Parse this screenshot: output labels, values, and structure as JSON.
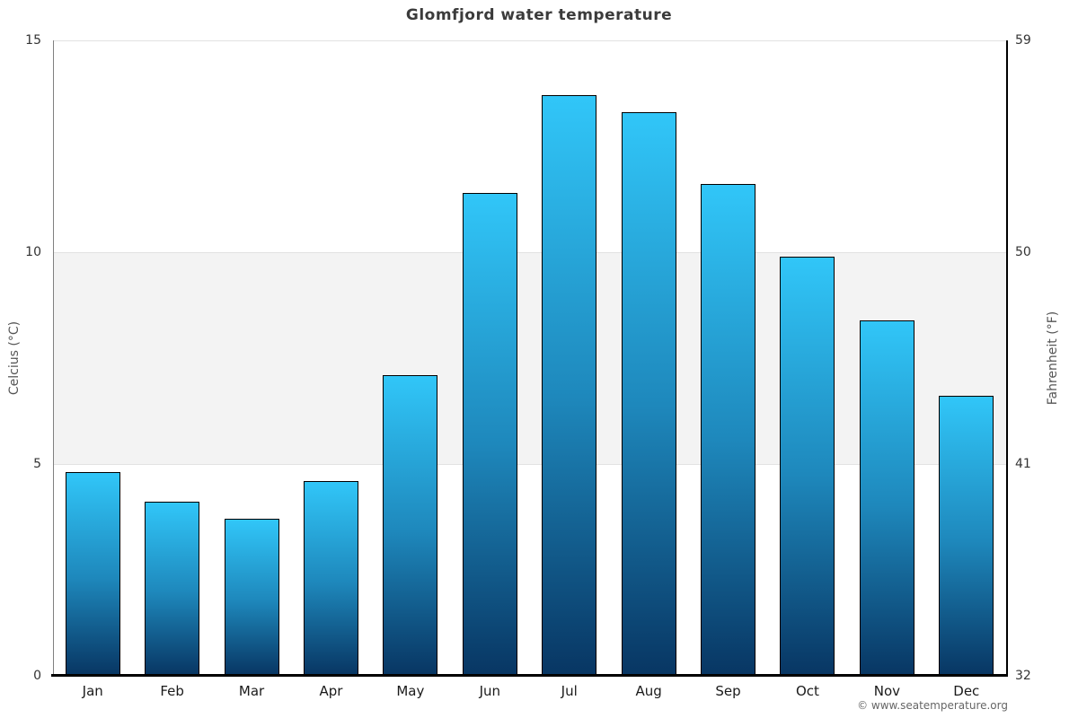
{
  "title": "Glomfjord water temperature",
  "footer": "© www.seatemperature.org",
  "chart_data": {
    "type": "bar",
    "title": "Glomfjord water temperature",
    "categories": [
      "Jan",
      "Feb",
      "Mar",
      "Apr",
      "May",
      "Jun",
      "Jul",
      "Aug",
      "Sep",
      "Oct",
      "Nov",
      "Dec"
    ],
    "values": [
      4.8,
      4.1,
      3.7,
      4.6,
      7.1,
      11.4,
      13.7,
      13.3,
      11.6,
      9.9,
      8.4,
      6.6
    ],
    "unit": "°C",
    "ylabel_left": "Celcius (°C)",
    "ylabel_right": "Fahrenheit (°F)",
    "xlabel": "",
    "ylim": [
      0,
      15
    ],
    "left_ticks_c": [
      0,
      5,
      10,
      15
    ],
    "right_ticks_f": [
      32,
      41,
      50,
      59
    ],
    "gridlines_c": [
      5,
      10,
      15
    ],
    "band_c": [
      5,
      10
    ],
    "grid": "horizontal",
    "legend": "none",
    "colors": {
      "bar_top": "#31c6f8",
      "bar_mid": "#1e88bc",
      "bar_bottom": "#083663",
      "bar_border": "#000000",
      "band_fill": "#f3f3f3",
      "gridline": "#e2e2e2",
      "left_axis": "#808080",
      "right_axis": "#000000",
      "baseline": "#000000",
      "title_text": "#3b3b3b",
      "tick_text": "#333333",
      "month_text": "#1a1a1a",
      "axis_label_text": "#555555",
      "footer_text": "#666666"
    }
  }
}
